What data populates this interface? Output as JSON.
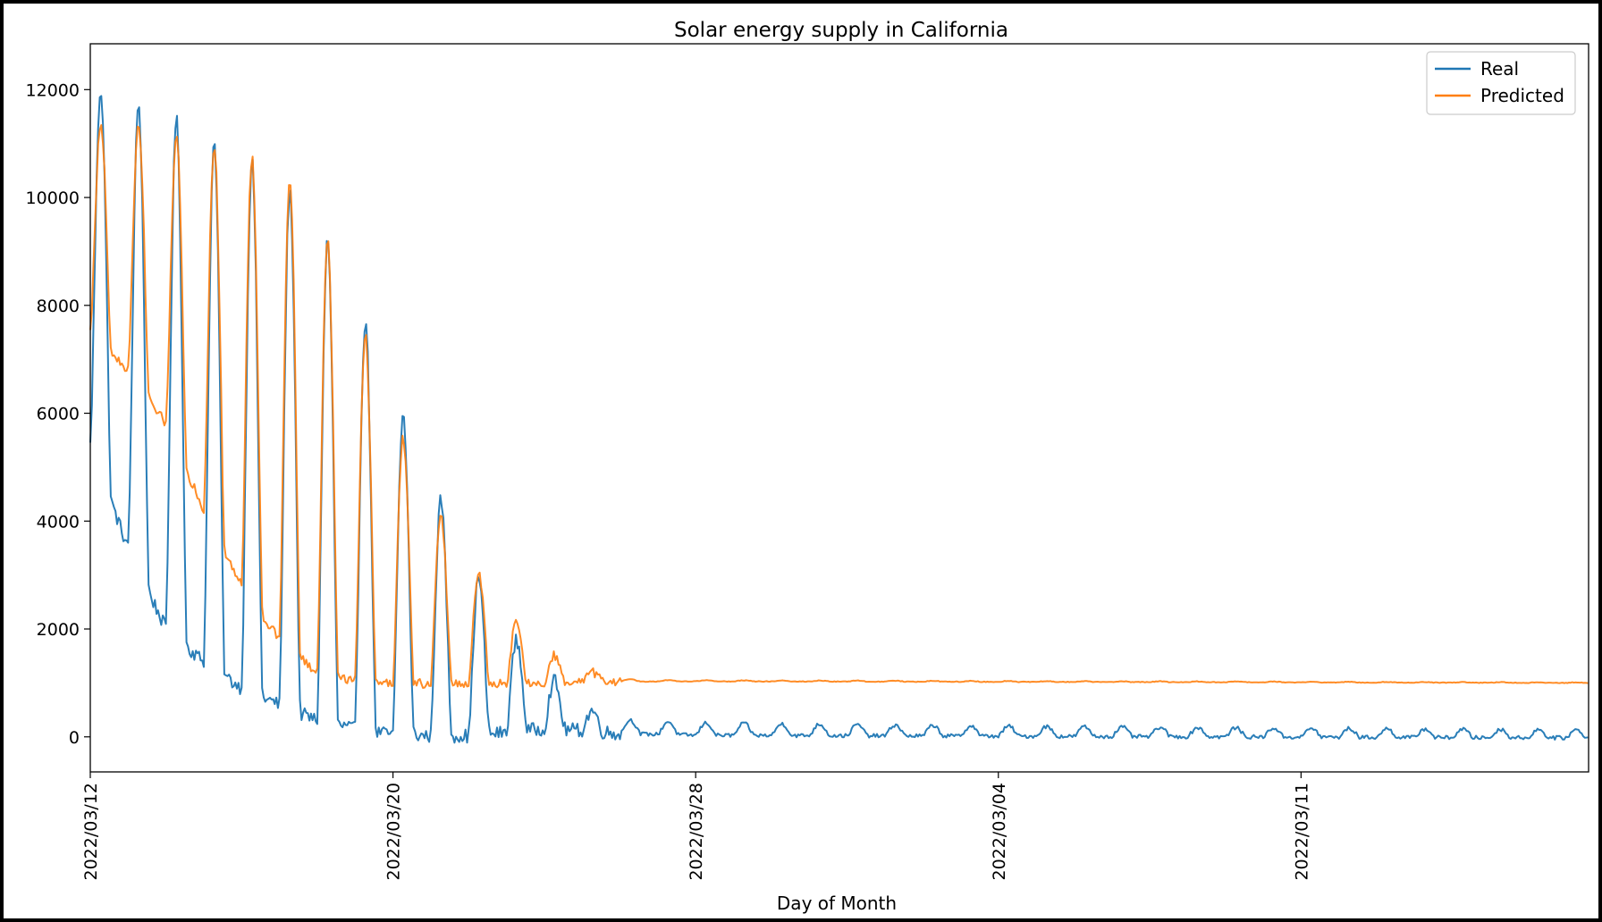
{
  "chart_data": {
    "type": "line",
    "title": "Solar energy supply in California",
    "xlabel": "Day of Month",
    "ylabel": "",
    "x_range_days": [
      0,
      39.6
    ],
    "ylim": [
      -650,
      12850
    ],
    "yticks": [
      0,
      2000,
      4000,
      6000,
      8000,
      10000,
      12000
    ],
    "xticks": [
      {
        "day": 0,
        "label": "2022/03/12"
      },
      {
        "day": 8,
        "label": "2022/03/20"
      },
      {
        "day": 16,
        "label": "2022/03/28"
      },
      {
        "day": 24,
        "label": "2022/03/04"
      },
      {
        "day": 32,
        "label": "2022/03/11"
      }
    ],
    "legend": {
      "position": "top-right"
    },
    "grid": false,
    "samples_per_day": 24,
    "series": [
      {
        "name": "Real",
        "color": "#1f77b4",
        "peak_env": [
          [
            0,
            12100
          ],
          [
            1,
            11800
          ],
          [
            2,
            11600
          ],
          [
            3,
            11100
          ],
          [
            4,
            10800
          ],
          [
            5,
            10300
          ],
          [
            6,
            9600
          ],
          [
            7,
            8200
          ],
          [
            8,
            6400
          ],
          [
            9,
            4800
          ],
          [
            10,
            3300
          ],
          [
            11,
            2000
          ],
          [
            12,
            1200
          ],
          [
            12.5,
            900
          ],
          [
            13,
            550
          ],
          [
            14,
            320
          ],
          [
            16,
            260
          ],
          [
            24,
            200
          ],
          [
            32,
            160
          ],
          [
            39.6,
            130
          ]
        ],
        "trough_env": [
          [
            0,
            5400
          ],
          [
            1,
            3500
          ],
          [
            2,
            2000
          ],
          [
            3,
            1400
          ],
          [
            4,
            900
          ],
          [
            5,
            600
          ],
          [
            6,
            300
          ],
          [
            7,
            150
          ],
          [
            8,
            40
          ],
          [
            9,
            20
          ],
          [
            10,
            20
          ],
          [
            11,
            80
          ],
          [
            12,
            150
          ],
          [
            13,
            120
          ],
          [
            14,
            60
          ],
          [
            16,
            30
          ],
          [
            39.6,
            -20
          ]
        ]
      },
      {
        "name": "Predicted",
        "color": "#ff7f0e",
        "peak_env": [
          [
            0,
            11300
          ],
          [
            1,
            11400
          ],
          [
            2,
            11200
          ],
          [
            3,
            11000
          ],
          [
            4,
            10800
          ],
          [
            5,
            10600
          ],
          [
            6,
            9700
          ],
          [
            7,
            8000
          ],
          [
            8,
            6000
          ],
          [
            9,
            4400
          ],
          [
            10,
            3300
          ],
          [
            11,
            2300
          ],
          [
            12,
            1600
          ],
          [
            13,
            1250
          ],
          [
            14,
            1080
          ],
          [
            15,
            1050
          ],
          [
            16,
            1050
          ],
          [
            39.6,
            1010
          ]
        ],
        "trough_env": [
          [
            0,
            7500
          ],
          [
            1,
            6800
          ],
          [
            2,
            5800
          ],
          [
            3,
            4200
          ],
          [
            4,
            2800
          ],
          [
            5,
            1800
          ],
          [
            6,
            1200
          ],
          [
            7,
            1050
          ],
          [
            8,
            1000
          ],
          [
            10,
            980
          ],
          [
            12,
            970
          ],
          [
            13,
            1000
          ],
          [
            14,
            1020
          ],
          [
            16,
            1030
          ],
          [
            39.6,
            1000
          ]
        ]
      }
    ]
  }
}
